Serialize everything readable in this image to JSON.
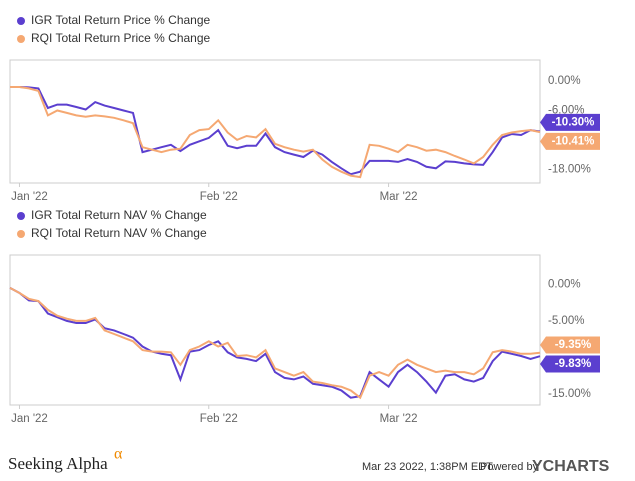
{
  "chart_data": [
    {
      "type": "line",
      "legend": "top-left",
      "categories": [
        null,
        "Jan '22",
        null,
        null,
        null,
        null,
        null,
        null,
        null,
        null,
        null,
        null,
        null,
        null,
        null,
        null,
        null,
        null,
        null,
        null,
        null,
        "Feb '22",
        null,
        null,
        null,
        null,
        null,
        null,
        null,
        null,
        null,
        null,
        null,
        null,
        null,
        null,
        null,
        null,
        null,
        null,
        "Mar '22",
        null,
        null,
        null,
        null,
        null,
        null,
        null,
        null,
        null,
        null,
        null,
        null,
        null,
        null,
        null,
        null
      ],
      "ylim": [
        -20.8,
        4.3
      ],
      "yticks": [
        {
          "value": 0,
          "label": "0.00%"
        },
        {
          "value": -6,
          "label": "-6.00%"
        },
        {
          "value": -18,
          "label": "-18.00%"
        }
      ],
      "series": [
        {
          "name": "IGR Total Return Price % Change",
          "color": "#5b3fcf",
          "values": [
            -1.2,
            -1.2,
            -1.3,
            -1.5,
            -5.5,
            -4.8,
            -4.8,
            -5.3,
            -5.8,
            -4.3,
            -5.0,
            -5.5,
            -6.0,
            -6.5,
            -14.5,
            -14.0,
            -13.5,
            -13.0,
            -14.3,
            -13.0,
            -12.3,
            -11.6,
            -10.0,
            -13.2,
            -13.7,
            -13.2,
            -13.2,
            -10.7,
            -13.5,
            -14.5,
            -15.0,
            -15.5,
            -14.2,
            -15.0,
            -16.5,
            -17.8,
            -19.0,
            -18.5,
            -16.3,
            -16.3,
            -16.3,
            -16.5,
            -15.9,
            -16.5,
            -17.5,
            -17.8,
            -16.4,
            -16.5,
            -16.8,
            -17.0,
            -17.1,
            -14.5,
            -11.5,
            -10.8,
            -11.0,
            -10.0,
            -10.3
          ],
          "value_labels": [
            null,
            null,
            null,
            null,
            null,
            null,
            null,
            null,
            null,
            null,
            null,
            null,
            null,
            null,
            null,
            null,
            null,
            null,
            null,
            null,
            null,
            null,
            null,
            null,
            null,
            null,
            null,
            null,
            null,
            null,
            null,
            null,
            null,
            null,
            null,
            null,
            null,
            null,
            null,
            null,
            null,
            null,
            null,
            null,
            null,
            null,
            null,
            null,
            null,
            null,
            null,
            null,
            null,
            null,
            null,
            null,
            "-10.30%"
          ]
        },
        {
          "name": "RQI Total Return Price % Change",
          "color": "#f5a872",
          "values": [
            -1.2,
            -1.2,
            -1.5,
            -2.0,
            -7.0,
            -6.0,
            -6.5,
            -7.0,
            -7.3,
            -7.0,
            -7.2,
            -7.5,
            -8.0,
            -8.6,
            -13.5,
            -14.0,
            -14.5,
            -14.0,
            -13.8,
            -11.0,
            -10.0,
            -9.8,
            -8.0,
            -10.5,
            -12.0,
            -11.2,
            -11.5,
            -9.8,
            -12.8,
            -13.5,
            -14.0,
            -14.4,
            -14.0,
            -16.0,
            -17.5,
            -18.5,
            -19.3,
            -19.6,
            -13.0,
            -13.2,
            -13.8,
            -14.5,
            -13.0,
            -13.5,
            -14.2,
            -14.0,
            -14.5,
            -15.3,
            -16.0,
            -16.8,
            -15.5,
            -13.0,
            -11.0,
            -10.5,
            -10.2,
            -10.0,
            -10.41
          ],
          "value_labels": [
            null,
            null,
            null,
            null,
            null,
            null,
            null,
            null,
            null,
            null,
            null,
            null,
            null,
            null,
            null,
            null,
            null,
            null,
            null,
            null,
            null,
            null,
            null,
            null,
            null,
            null,
            null,
            null,
            null,
            null,
            null,
            null,
            null,
            null,
            null,
            null,
            null,
            null,
            null,
            null,
            null,
            null,
            null,
            null,
            null,
            null,
            null,
            null,
            null,
            null,
            null,
            null,
            null,
            null,
            null,
            null,
            "-10.41%"
          ]
        }
      ]
    },
    {
      "type": "line",
      "legend": "top-left",
      "categories": [
        null,
        "Jan '22",
        null,
        null,
        null,
        null,
        null,
        null,
        null,
        null,
        null,
        null,
        null,
        null,
        null,
        null,
        null,
        null,
        null,
        null,
        null,
        "Feb '22",
        null,
        null,
        null,
        null,
        null,
        null,
        null,
        null,
        null,
        null,
        null,
        null,
        null,
        null,
        null,
        null,
        null,
        null,
        "Mar '22",
        null,
        null,
        null,
        null,
        null,
        null,
        null,
        null,
        null,
        null,
        null,
        null,
        null,
        null,
        null,
        null
      ],
      "ylim": [
        -16.5,
        4
      ],
      "yticks": [
        {
          "value": 0,
          "label": "0.00%"
        },
        {
          "value": -5,
          "label": "-5.00%"
        },
        {
          "value": -15,
          "label": "-15.00%"
        }
      ],
      "series": [
        {
          "name": "IGR Total Return NAV % Change",
          "color": "#5b3fcf",
          "values": [
            -0.5,
            -1.2,
            -2.2,
            -2.3,
            -4.0,
            -4.5,
            -5.0,
            -5.3,
            -5.3,
            -4.8,
            -6.0,
            -6.3,
            -6.8,
            -7.3,
            -8.5,
            -9.2,
            -9.5,
            -9.7,
            -13.0,
            -9.2,
            -9.0,
            -8.3,
            -7.8,
            -9.3,
            -10.0,
            -10.2,
            -10.5,
            -9.5,
            -12.0,
            -12.8,
            -13.0,
            -12.6,
            -13.6,
            -13.8,
            -14.0,
            -14.5,
            -15.5,
            -15.3,
            -12.0,
            -13.0,
            -14.0,
            -12.0,
            -11.0,
            -12.0,
            -13.3,
            -14.8,
            -12.5,
            -12.3,
            -13.0,
            -13.3,
            -12.8,
            -10.5,
            -9.2,
            -9.5,
            -9.8,
            -10.2,
            -9.83
          ],
          "value_labels": [
            null,
            null,
            null,
            null,
            null,
            null,
            null,
            null,
            null,
            null,
            null,
            null,
            null,
            null,
            null,
            null,
            null,
            null,
            null,
            null,
            null,
            null,
            null,
            null,
            null,
            null,
            null,
            null,
            null,
            null,
            null,
            null,
            null,
            null,
            null,
            null,
            null,
            null,
            null,
            null,
            null,
            null,
            null,
            null,
            null,
            null,
            null,
            null,
            null,
            null,
            null,
            null,
            null,
            null,
            null,
            null,
            "-9.83%"
          ]
        },
        {
          "name": "RQI Total Return NAV % Change",
          "color": "#f5a872",
          "values": [
            -0.5,
            -1.2,
            -2.0,
            -2.3,
            -3.5,
            -4.3,
            -4.7,
            -5.0,
            -5.0,
            -4.6,
            -6.3,
            -6.8,
            -7.3,
            -7.8,
            -9.0,
            -9.2,
            -9.2,
            -9.3,
            -11.0,
            -9.0,
            -8.5,
            -7.8,
            -8.5,
            -8.0,
            -9.8,
            -9.7,
            -10.0,
            -9.0,
            -11.5,
            -12.0,
            -12.5,
            -12.0,
            -13.3,
            -13.5,
            -13.8,
            -14.0,
            -14.5,
            -15.5,
            -12.5,
            -12.0,
            -12.5,
            -11.0,
            -10.3,
            -11.0,
            -11.5,
            -12.0,
            -11.8,
            -12.0,
            -12.0,
            -12.3,
            -11.5,
            -9.3,
            -9.0,
            -9.2,
            -9.5,
            -9.5,
            -9.35
          ],
          "value_labels": [
            null,
            null,
            null,
            null,
            null,
            null,
            null,
            null,
            null,
            null,
            null,
            null,
            null,
            null,
            null,
            null,
            null,
            null,
            null,
            null,
            null,
            null,
            null,
            null,
            null,
            null,
            null,
            null,
            null,
            null,
            null,
            null,
            null,
            null,
            null,
            null,
            null,
            null,
            null,
            null,
            null,
            null,
            null,
            null,
            null,
            null,
            null,
            null,
            null,
            null,
            null,
            null,
            null,
            null,
            null,
            null,
            "-9.35%"
          ]
        }
      ]
    }
  ],
  "footer": {
    "brand": "Seeking Alpha",
    "brand_mark": "α",
    "timestamp": "Mar 23 2022, 1:38PM EDT.",
    "powered": "Powered by",
    "ycharts": "YCHARTS"
  }
}
